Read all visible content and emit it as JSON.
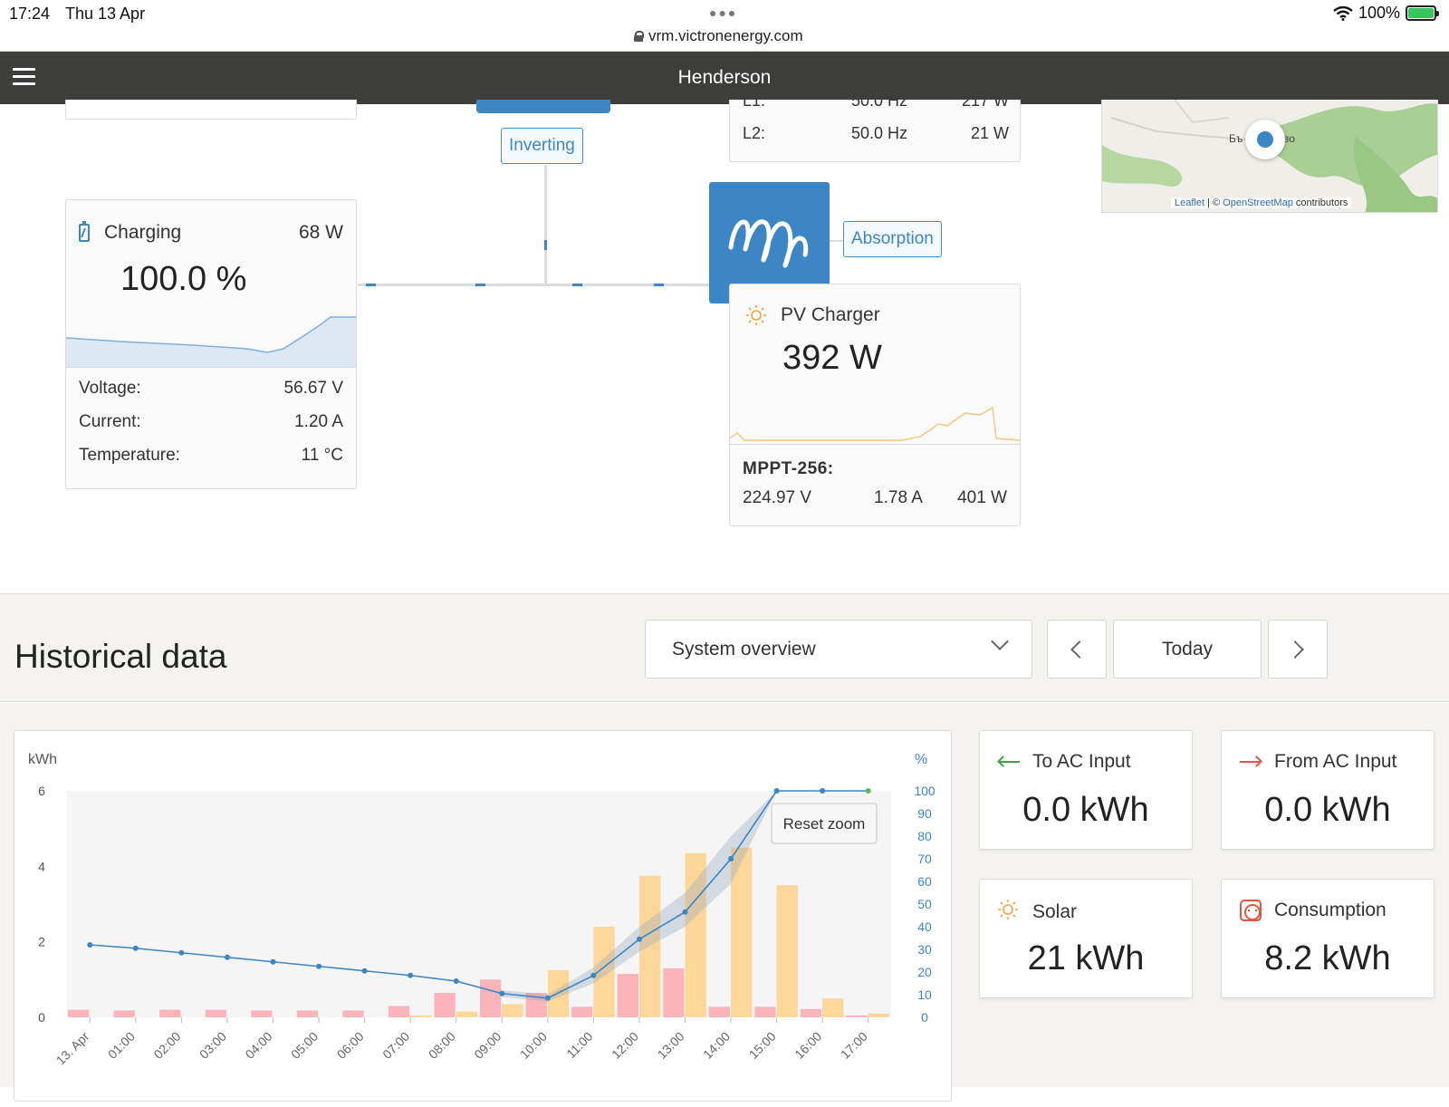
{
  "status_bar": {
    "time": "17:24",
    "date": "Thu 13 Apr",
    "url": "vrm.victronenergy.com",
    "battery_percent": "100%"
  },
  "nav": {
    "title": "Henderson"
  },
  "inverter": {
    "state": "Inverting"
  },
  "ac_output": {
    "rows": [
      {
        "phase": "L1:",
        "freq": "50.0 Hz",
        "power": "217 W"
      },
      {
        "phase": "L2:",
        "freq": "50.0 Hz",
        "power": "21 W"
      }
    ]
  },
  "map": {
    "attribution_leaflet": "Leaflet",
    "attribution_sep": " | © ",
    "attribution_osm": "OpenStreetMap",
    "attribution_tail": " contributors",
    "place_left": "Бъ",
    "place_right": "во"
  },
  "battery": {
    "state": "Charging",
    "power": "68 W",
    "soc": "100.0 %",
    "voltage_label": "Voltage:",
    "voltage": "56.67 V",
    "current_label": "Current:",
    "current": "1.20 A",
    "temperature_label": "Temperature:",
    "temperature": "11 °C"
  },
  "charger": {
    "state": "Absorption"
  },
  "pv": {
    "title": "PV Charger",
    "power": "392 W",
    "mppt_name": "MPPT-256:",
    "voltage": "224.97 V",
    "current": "1.78 A",
    "watts": "401 W"
  },
  "historical": {
    "title": "Historical data",
    "selected_view": "System overview",
    "prev_label": "<",
    "period_label": "Today",
    "next_label": ">"
  },
  "stats": {
    "to_ac_input": {
      "label": "To AC Input",
      "value": "0.0 kWh"
    },
    "from_ac_input": {
      "label": "From AC Input",
      "value": "0.0 kWh"
    },
    "solar": {
      "label": "Solar",
      "value": "21 kWh"
    },
    "consumption": {
      "label": "Consumption",
      "value": "8.2 kWh"
    }
  },
  "colors": {
    "accent": "#3d86c6",
    "solar_bar": "#fdd79a",
    "consumption_bar": "#fbb4b9",
    "nav_bg": "#3d3d3b",
    "green_arrow": "#3aaa35",
    "red_arrow": "#e8553f",
    "sun_orange": "#f5a03b"
  },
  "chart_data": {
    "type": "bar",
    "reset_zoom_label": "Reset zoom",
    "y_left_label": "kWh",
    "y_right_label": "%",
    "y_left_ticks": [
      "0",
      "2",
      "4",
      "6"
    ],
    "y_right_ticks": [
      "0",
      "10",
      "20",
      "30",
      "40",
      "50",
      "60",
      "70",
      "80",
      "90",
      "100"
    ],
    "ylim_left": [
      0,
      6
    ],
    "ylim_right": [
      0,
      100
    ],
    "categories": [
      "13. Apr",
      "01:00",
      "02:00",
      "03:00",
      "04:00",
      "05:00",
      "06:00",
      "07:00",
      "08:00",
      "09:00",
      "10:00",
      "11:00",
      "12:00",
      "13:00",
      "14:00",
      "15:00",
      "16:00",
      "17:00"
    ],
    "series": [
      {
        "type": "bar",
        "axis": "left",
        "color": "#fbb4b9",
        "values": [
          0.2,
          0.18,
          0.2,
          0.2,
          0.18,
          0.18,
          0.18,
          0.3,
          0.65,
          1.0,
          0.65,
          0.28,
          1.15,
          1.3,
          0.28,
          0.28,
          0.22,
          0.05
        ]
      },
      {
        "type": "bar",
        "axis": "left",
        "color": "#fdd79a",
        "values": [
          0,
          0,
          0,
          0,
          0,
          0,
          0,
          0.05,
          0.15,
          0.35,
          1.25,
          2.4,
          3.75,
          4.35,
          4.5,
          3.5,
          0.5,
          0.1
        ]
      },
      {
        "type": "line",
        "axis": "right",
        "color": "#3d86c6",
        "values": [
          32,
          30.5,
          28.5,
          26.5,
          24.5,
          22.5,
          20.5,
          18.5,
          16,
          10.5,
          8.5,
          18.5,
          34.5,
          46.5,
          70,
          100,
          100,
          100
        ]
      }
    ],
    "band_upper": [
      null,
      null,
      null,
      null,
      null,
      null,
      null,
      null,
      null,
      12,
      10,
      22,
      40,
      55,
      80,
      100,
      100,
      100
    ],
    "band_lower": [
      null,
      null,
      null,
      null,
      null,
      null,
      null,
      null,
      null,
      9,
      7,
      15,
      29,
      40,
      59,
      100,
      100,
      100
    ],
    "grid": false
  }
}
